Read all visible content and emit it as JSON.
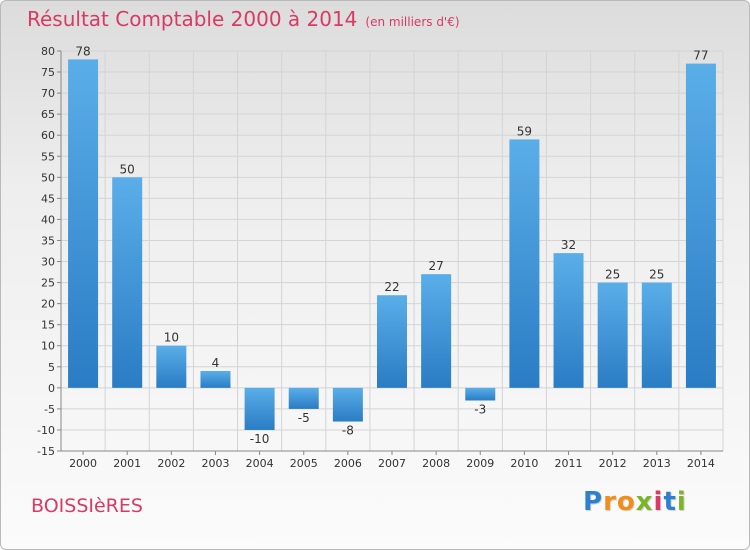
{
  "chart_data": {
    "type": "bar",
    "title": "Résultat Comptable 2000 à 2014",
    "subtitle": "(en milliers d'€)",
    "categories": [
      "2000",
      "2001",
      "2002",
      "2003",
      "2004",
      "2005",
      "2006",
      "2007",
      "2008",
      "2009",
      "2010",
      "2011",
      "2012",
      "2013",
      "2014"
    ],
    "values": [
      78,
      50,
      10,
      4,
      -10,
      -5,
      -8,
      22,
      27,
      -3,
      59,
      32,
      25,
      25,
      77
    ],
    "ylim": [
      -15,
      80
    ],
    "ytick_step": 5,
    "xlabel": "",
    "ylabel": "",
    "grid": true,
    "bar_color": "#3d8fd6"
  },
  "footer": {
    "commune": "BOISSIèRES",
    "logo": {
      "letters": [
        "P",
        "r",
        "o",
        "x",
        "i",
        "t",
        "i"
      ],
      "colors": [
        "#2f7fcf",
        "#f28c1a",
        "#f28c1a",
        "#7ab52a",
        "#d93a63",
        "#2f7fcf",
        "#7ab52a"
      ]
    }
  }
}
